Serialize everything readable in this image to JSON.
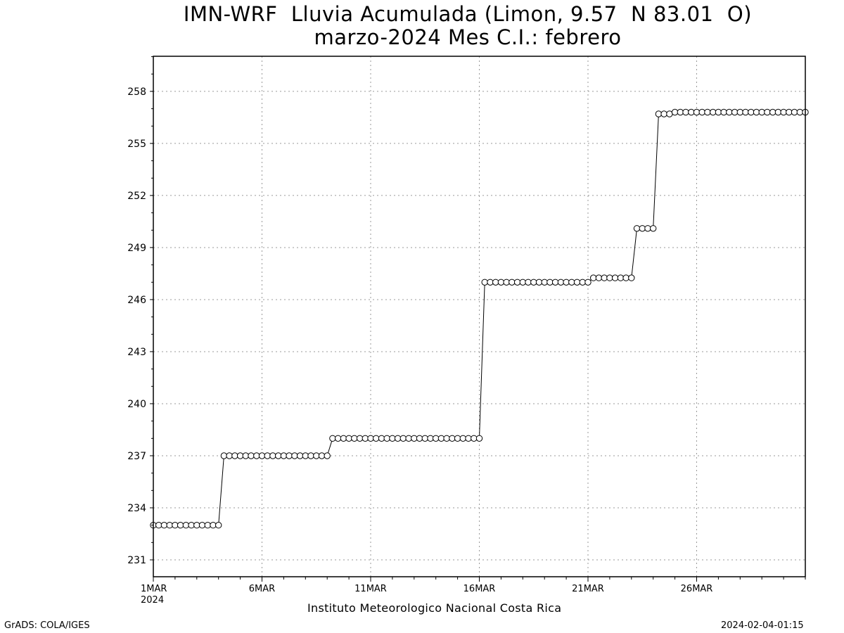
{
  "title_line1": "IMN-WRF  Lluvia Acumulada (Limon, 9.57  N 83.01  O)",
  "title_line2": "marzo-2024 Mes C.I.: febrero",
  "x_caption": "Instituto Meteorologico Nacional Costa Rica",
  "footer_left": "GrADS: COLA/IGES",
  "footer_right": "2024-02-04-01:15",
  "chart_data": {
    "type": "line",
    "title": "IMN-WRF  Lluvia Acumulada (Limon, 9.57  N 83.01  O)",
    "subtitle": "marzo-2024 Mes C.I.: febrero",
    "xlabel": "Instituto Meteorologico Nacional Costa Rica",
    "ylabel": "",
    "x_unit": "days of March 2024 (day-of-month, 6-hourly steps)",
    "xlim": [
      1,
      31
    ],
    "ylim": [
      230,
      260
    ],
    "grid": true,
    "marker": "open-circle",
    "line_color": "#000000",
    "x_ticks": [
      {
        "x": 1,
        "label": "1MAR",
        "label2": "2024"
      },
      {
        "x": 6,
        "label": "6MAR"
      },
      {
        "x": 11,
        "label": "11MAR"
      },
      {
        "x": 16,
        "label": "16MAR"
      },
      {
        "x": 21,
        "label": "21MAR"
      },
      {
        "x": 26,
        "label": "26MAR"
      }
    ],
    "y_ticks": [
      231,
      234,
      237,
      240,
      243,
      246,
      249,
      252,
      255,
      258
    ],
    "segments": [
      {
        "x_start": 1.0,
        "x_end": 4.0,
        "value": 233.0
      },
      {
        "x_start": 4.25,
        "x_end": 9.0,
        "value": 237.0
      },
      {
        "x_start": 9.25,
        "x_end": 16.0,
        "value": 238.0
      },
      {
        "x_start": 16.25,
        "x_end": 21.0,
        "value": 247.0
      },
      {
        "x_start": 21.25,
        "x_end": 23.0,
        "value": 247.25
      },
      {
        "x_start": 23.25,
        "x_end": 24.0,
        "value": 250.1
      },
      {
        "x_start": 24.25,
        "x_end": 24.75,
        "value": 256.7
      },
      {
        "x_start": 25.0,
        "x_end": 31.0,
        "value": 256.8
      }
    ],
    "step_hours": 6
  }
}
